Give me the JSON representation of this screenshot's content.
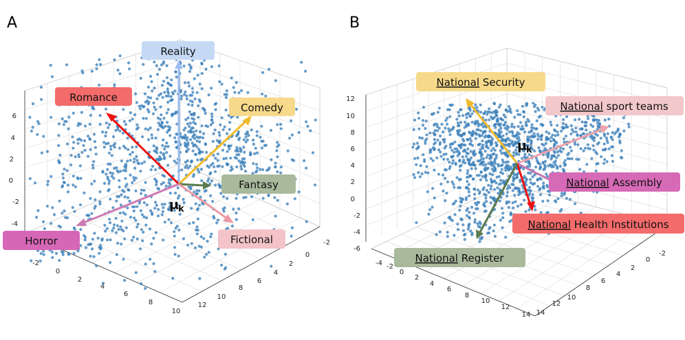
{
  "chart_data": [
    {
      "type": "scatter",
      "panel": "A",
      "title": "",
      "center_label": {
        "main": "μ",
        "sub": "k"
      },
      "series": [
        {
          "color": "#3a7fba",
          "point_count": 1200
        }
      ],
      "axes": {
        "x": {
          "range": [
            -3,
            11
          ],
          "ticks": [
            -2,
            0,
            2,
            4,
            6,
            8,
            10
          ]
        },
        "y": {
          "range": [
            -3,
            13
          ],
          "ticks": [
            -2,
            0,
            2,
            4,
            6,
            8,
            10,
            12
          ]
        },
        "z": {
          "range": [
            -6,
            7
          ],
          "ticks": [
            -6,
            -4,
            -2,
            0,
            2,
            4,
            6
          ]
        }
      },
      "grid": true,
      "vectors": [
        {
          "label": "Reality",
          "color": "#9dbdf0",
          "label_bg": "#c5d9f5",
          "bold_prefix": ""
        },
        {
          "label": "Romance",
          "color": "#ee1111",
          "label_bg": "#f36b6b",
          "bold_prefix": ""
        },
        {
          "label": "Comedy",
          "color": "#f2bb2a",
          "label_bg": "#f6d98a",
          "bold_prefix": ""
        },
        {
          "label": "Fantasy",
          "color": "#5c7a4e",
          "label_bg": "#a9b99c",
          "bold_prefix": ""
        },
        {
          "label": "Fictional",
          "color": "#ec9aa3",
          "label_bg": "#f3c3c8",
          "bold_prefix": ""
        },
        {
          "label": "Horror",
          "color": "#cf7bb4",
          "label_bg": "#d667b6",
          "bold_prefix": ""
        }
      ]
    },
    {
      "type": "scatter",
      "panel": "B",
      "title": "",
      "center_label": {
        "main": "μ",
        "sub": "k"
      },
      "series": [
        {
          "color": "#3a7fba",
          "point_count": 1400
        }
      ],
      "axes": {
        "x": {
          "range": [
            -4,
            15
          ],
          "ticks": [
            -4,
            -2,
            0,
            2,
            4,
            6,
            8,
            10,
            12,
            14
          ]
        },
        "y": {
          "range": [
            -3,
            15
          ],
          "ticks": [
            -2,
            0,
            2,
            4,
            6,
            8,
            10,
            12,
            14
          ]
        },
        "z": {
          "range": [
            -6,
            12
          ],
          "ticks": [
            -6,
            -4,
            -2,
            0,
            2,
            4,
            6,
            8,
            10,
            12
          ]
        }
      },
      "grid": true,
      "vectors": [
        {
          "label": "Security",
          "bold_prefix": "National",
          "color": "#f0b92a",
          "label_bg": "#f6d98a"
        },
        {
          "label": "sport teams",
          "bold_prefix": "National",
          "color": "#eda3a9",
          "label_bg": "#f3c8cb"
        },
        {
          "label": "Assembly",
          "bold_prefix": "National",
          "color": "#c877b0",
          "label_bg": "#d66ab6"
        },
        {
          "label": "Health Institutions",
          "bold_prefix": "National",
          "color": "#ee1111",
          "label_bg": "#f46b6b"
        },
        {
          "label": "Register",
          "bold_prefix": "National",
          "color": "#5c7a4e",
          "label_bg": "#a9b99c"
        }
      ]
    }
  ]
}
